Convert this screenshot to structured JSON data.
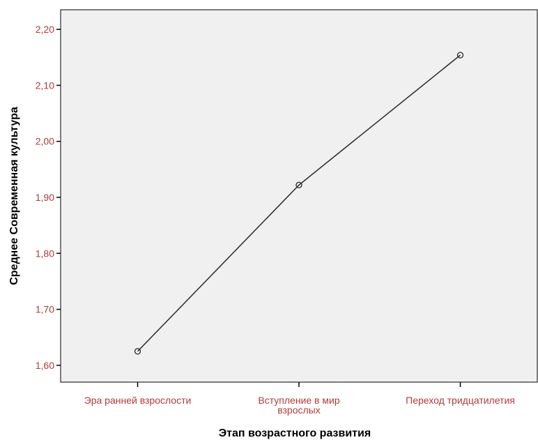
{
  "chart_data": {
    "type": "line",
    "title": "",
    "xlabel": "Этап возрастного развития",
    "ylabel": "Среднее Современная культура",
    "categories": [
      [
        "Эра ранней взрослости"
      ],
      [
        "Вступление в мир",
        "взрослых"
      ],
      [
        "Переход тридцатилетия"
      ]
    ],
    "series": [
      {
        "values": [
          1.625,
          1.922,
          2.154
        ]
      }
    ],
    "ylim": [
      1.57,
      2.235
    ],
    "yticks": [
      1.6,
      1.7,
      1.8,
      1.9,
      2.0,
      2.1,
      2.2
    ],
    "ytick_labels": [
      "1,60",
      "1,70",
      "1,80",
      "1,90",
      "2,00",
      "2,10",
      "2,20"
    ],
    "grid": false,
    "legend": "none",
    "colors": {
      "plot_background": "#f0f0f0",
      "line": "#333333",
      "tick_label": "#b23a3a",
      "axis": "#000000"
    }
  }
}
